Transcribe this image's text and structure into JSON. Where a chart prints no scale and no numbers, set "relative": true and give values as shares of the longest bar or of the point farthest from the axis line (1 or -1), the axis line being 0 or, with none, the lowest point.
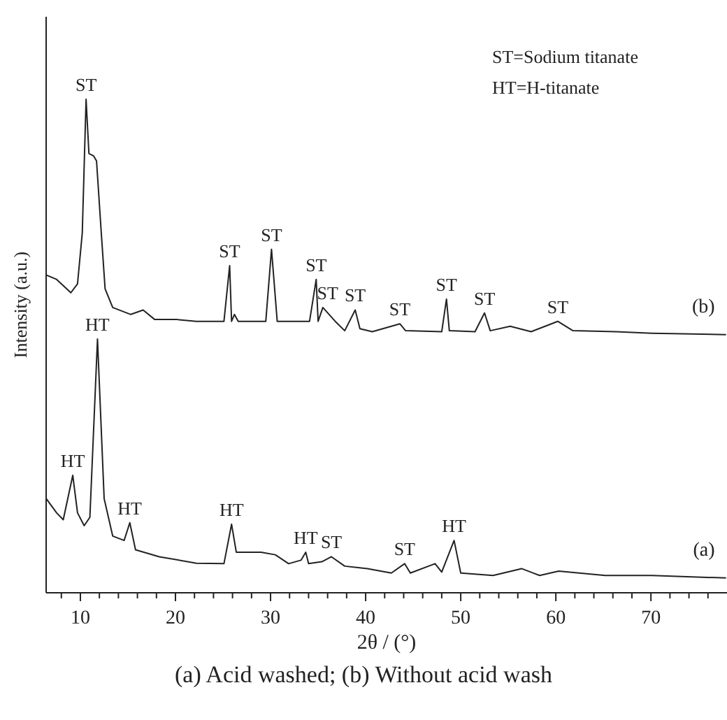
{
  "chart_data": {
    "type": "line",
    "relative": true,
    "xlabel": "2θ / (°)",
    "ylabel": "Intensity (a.u.)",
    "xlim": [
      6.4,
      78
    ],
    "xticks": [
      {
        "value": 8,
        "label": null
      },
      10,
      {
        "value": 12,
        "label": null
      },
      {
        "value": 14,
        "label": null
      },
      {
        "value": 16,
        "label": null
      },
      {
        "value": 18,
        "label": null
      },
      20,
      {
        "value": 22,
        "label": null
      },
      {
        "value": 24,
        "label": null
      },
      {
        "value": 26,
        "label": null
      },
      {
        "value": 28,
        "label": null
      },
      30,
      {
        "value": 32,
        "label": null
      },
      {
        "value": 34,
        "label": null
      },
      {
        "value": 36,
        "label": null
      },
      {
        "value": 38,
        "label": null
      },
      40,
      {
        "value": 42,
        "label": null
      },
      {
        "value": 44,
        "label": null
      },
      {
        "value": 46,
        "label": null
      },
      {
        "value": 48,
        "label": null
      },
      50,
      {
        "value": 52,
        "label": null
      },
      {
        "value": 54,
        "label": null
      },
      {
        "value": 56,
        "label": null
      },
      {
        "value": 58,
        "label": null
      },
      60,
      {
        "value": 62,
        "label": null
      },
      {
        "value": 64,
        "label": null
      },
      {
        "value": 66,
        "label": null
      },
      {
        "value": 68,
        "label": null
      },
      70,
      {
        "value": 72,
        "label": null
      },
      {
        "value": 74,
        "label": null
      },
      {
        "value": 76,
        "label": null
      }
    ],
    "grid": false,
    "legend": false,
    "tick_labels": "x",
    "line_style": "solid",
    "marker": "none",
    "series": [
      {
        "name": "(b)",
        "color": "#222222",
        "x": [
          6.4,
          7.5,
          9.0,
          9.7,
          10.2,
          10.6,
          10.9,
          11.4,
          11.7,
          12.2,
          12.6,
          13.4,
          15.3,
          16.6,
          17.8,
          20.0,
          22.2,
          25.1,
          25.7,
          25.9,
          26.2,
          26.6,
          29.5,
          30.1,
          30.7,
          34.1,
          34.8,
          35.0,
          35.5,
          36.8,
          37.8,
          38.9,
          39.4,
          40.7,
          43.6,
          44.2,
          48.0,
          48.5,
          48.8,
          51.5,
          52.5,
          53.1,
          55.2,
          57.4,
          60.2,
          61.8,
          66.3,
          70.1,
          77.9
        ],
        "values": [
          0.644,
          0.635,
          0.608,
          0.626,
          0.729,
          1.0,
          0.89,
          0.885,
          0.875,
          0.729,
          0.616,
          0.578,
          0.564,
          0.573,
          0.554,
          0.554,
          0.55,
          0.55,
          0.663,
          0.55,
          0.564,
          0.55,
          0.55,
          0.696,
          0.55,
          0.55,
          0.635,
          0.55,
          0.578,
          0.55,
          0.531,
          0.573,
          0.535,
          0.529,
          0.545,
          0.531,
          0.529,
          0.595,
          0.531,
          0.529,
          0.567,
          0.531,
          0.54,
          0.529,
          0.55,
          0.531,
          0.529,
          0.526,
          0.523
        ]
      },
      {
        "name": "(a)",
        "color": "#222222",
        "x": [
          6.4,
          7.5,
          8.2,
          9.2,
          9.7,
          10.4,
          11.0,
          11.8,
          12.5,
          13.4,
          14.6,
          15.2,
          15.8,
          18.3,
          22.2,
          25.1,
          25.9,
          26.4,
          29.0,
          30.5,
          31.9,
          33.2,
          33.7,
          34.0,
          35.4,
          36.4,
          37.8,
          40.2,
          42.7,
          44.1,
          44.7,
          47.3,
          48.0,
          49.3,
          50.0,
          53.4,
          56.4,
          58.3,
          60.3,
          65.2,
          70.1,
          77.9
        ],
        "values": [
          0.191,
          0.162,
          0.148,
          0.238,
          0.162,
          0.136,
          0.153,
          0.514,
          0.191,
          0.115,
          0.106,
          0.142,
          0.087,
          0.073,
          0.06,
          0.059,
          0.139,
          0.082,
          0.082,
          0.077,
          0.059,
          0.066,
          0.082,
          0.059,
          0.063,
          0.073,
          0.054,
          0.049,
          0.04,
          0.059,
          0.04,
          0.059,
          0.042,
          0.106,
          0.04,
          0.035,
          0.049,
          0.035,
          0.044,
          0.035,
          0.035,
          0.03
        ]
      }
    ],
    "annotations": [
      {
        "text": "ST",
        "x": 10.6,
        "y": 1.0
      },
      {
        "text": "ST",
        "x": 25.7,
        "y": 0.663
      },
      {
        "text": "ST",
        "x": 30.1,
        "y": 0.696
      },
      {
        "text": "ST",
        "x": 34.8,
        "y": 0.635
      },
      {
        "text": "ST",
        "x": 36.0,
        "y": 0.578
      },
      {
        "text": "ST",
        "x": 38.9,
        "y": 0.573
      },
      {
        "text": "ST",
        "x": 43.6,
        "y": 0.545
      },
      {
        "text": "ST",
        "x": 48.5,
        "y": 0.595
      },
      {
        "text": "ST",
        "x": 52.5,
        "y": 0.567
      },
      {
        "text": "ST",
        "x": 60.2,
        "y": 0.55
      },
      {
        "text": "HT",
        "x": 9.2,
        "y": 0.238
      },
      {
        "text": "HT",
        "x": 11.8,
        "y": 0.514
      },
      {
        "text": "HT",
        "x": 15.2,
        "y": 0.142
      },
      {
        "text": "HT",
        "x": 25.9,
        "y": 0.139
      },
      {
        "text": "HT",
        "x": 33.7,
        "y": 0.082
      },
      {
        "text": "ST",
        "x": 36.4,
        "y": 0.073
      },
      {
        "text": "ST",
        "x": 44.1,
        "y": 0.059
      },
      {
        "text": "HT",
        "x": 49.3,
        "y": 0.106
      },
      "ST=Sodium titanate",
      "HT=H-titanate",
      "(a) Acid washed; (b) Without acid wash"
    ]
  }
}
